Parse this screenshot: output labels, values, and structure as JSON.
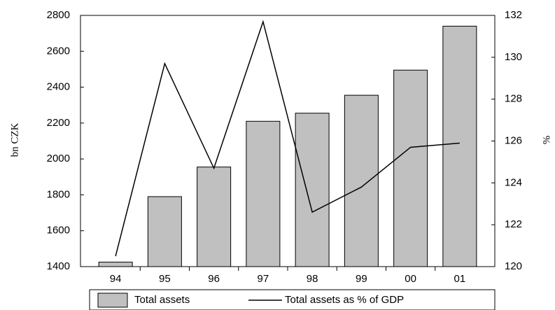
{
  "chart_data": {
    "type": "bar",
    "categories": [
      "94",
      "95",
      "96",
      "97",
      "98",
      "99",
      "00",
      "01"
    ],
    "y_label": "bn CZK",
    "y2_label": "%",
    "ylim": [
      1400,
      2800
    ],
    "yticks": [
      1400,
      1600,
      1800,
      2000,
      2200,
      2400,
      2600,
      2800
    ],
    "y2lim": [
      120,
      132
    ],
    "y2ticks": [
      120,
      122,
      124,
      126,
      128,
      130,
      132
    ],
    "legend": "bottom",
    "series": [
      {
        "name": "Total assets",
        "type": "bar",
        "color": "#c0c0c0",
        "values": [
          1425,
          1790,
          1955,
          2210,
          2255,
          2355,
          2495,
          2740
        ]
      },
      {
        "name": "Total assets as % of GDP",
        "type": "line",
        "axis": "y2",
        "color": "#000000",
        "values": [
          120.5,
          129.7,
          124.7,
          131.7,
          122.6,
          123.8,
          125.7,
          125.9
        ]
      }
    ]
  }
}
